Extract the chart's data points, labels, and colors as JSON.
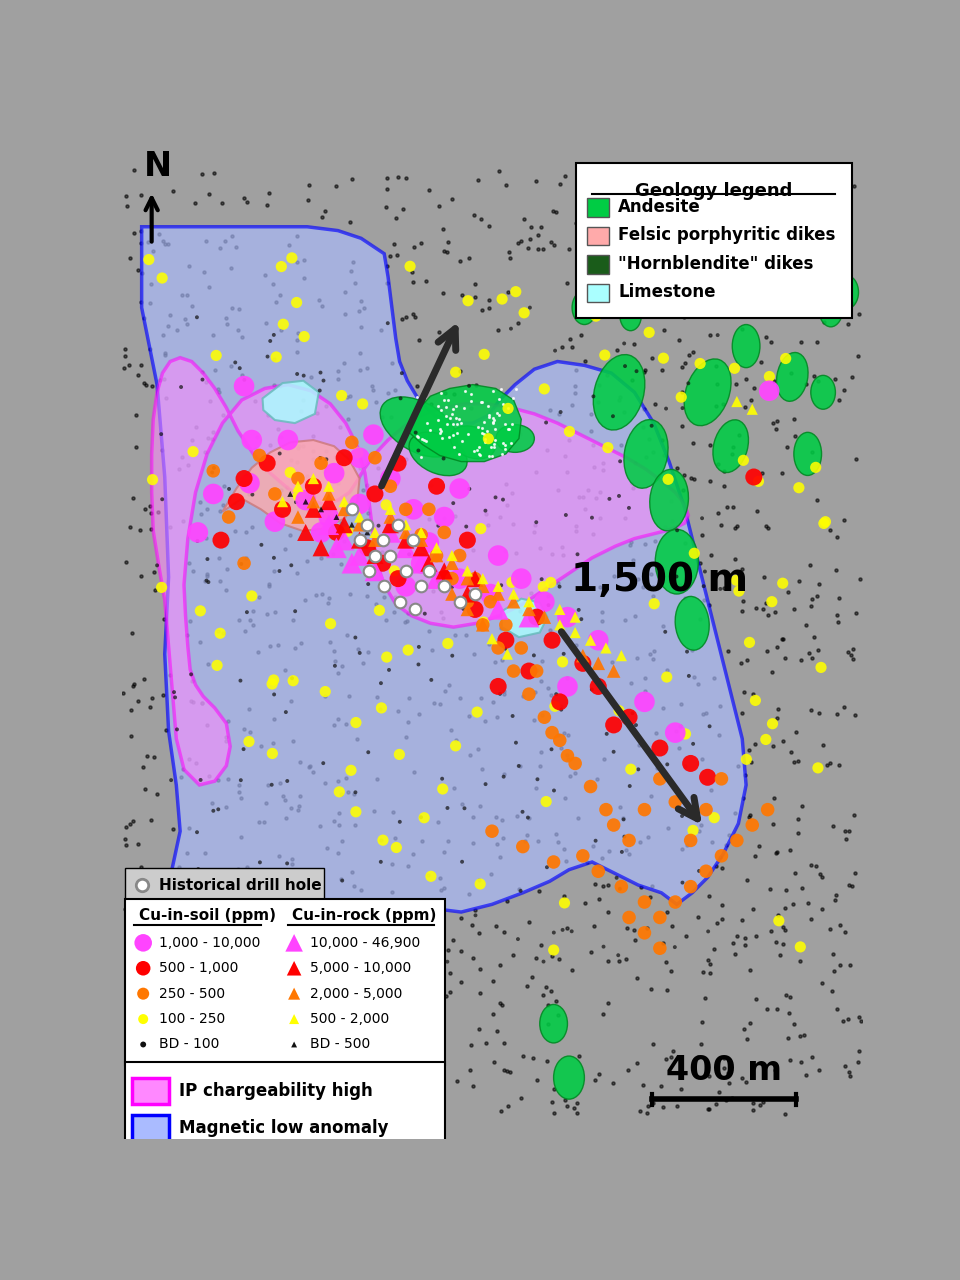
{
  "background_color": "#a0a0a0",
  "geology_legend_title": "Geology legend",
  "geology_items": [
    {
      "label": "Andesite",
      "color": "#00cc44"
    },
    {
      "label": "Felsic porphyritic dikes",
      "color": "#ffaaaa"
    },
    {
      "label": "\"Hornblendite\" dikes",
      "color": "#1a5c1a"
    },
    {
      "label": "Limestone",
      "color": "#aaffff"
    }
  ],
  "ip_chargeability_color": "#ff88ff",
  "ip_chargeability_edge": "#ff00ff",
  "magnetic_low_color": "#aabbff",
  "magnetic_low_edge": "#0000ff",
  "andesite_color": "#00cc44",
  "felsic_color": "#ffaaaa",
  "hornblendite_color": "#1a5c1a",
  "limestone_color": "#aaffff",
  "scale_bar_label": "400 m",
  "distance_label": "1,500 m",
  "cu_soil_colors": [
    "#ff44ff",
    "#ff0000",
    "#ff7700",
    "#ffff00",
    "#111111"
  ],
  "cu_soil_labels": [
    "1,000 - 10,000",
    "500 - 1,000",
    "250 - 500",
    "100 - 250",
    "BD - 100"
  ],
  "cu_rock_colors": [
    "#ff44ff",
    "#ff0000",
    "#ff7700",
    "#ffff00",
    "#111111"
  ],
  "cu_rock_labels": [
    "10,000 - 46,900",
    "5,000 - 10,000",
    "2,000 - 5,000",
    "500 - 2,000",
    "BD - 500"
  ]
}
